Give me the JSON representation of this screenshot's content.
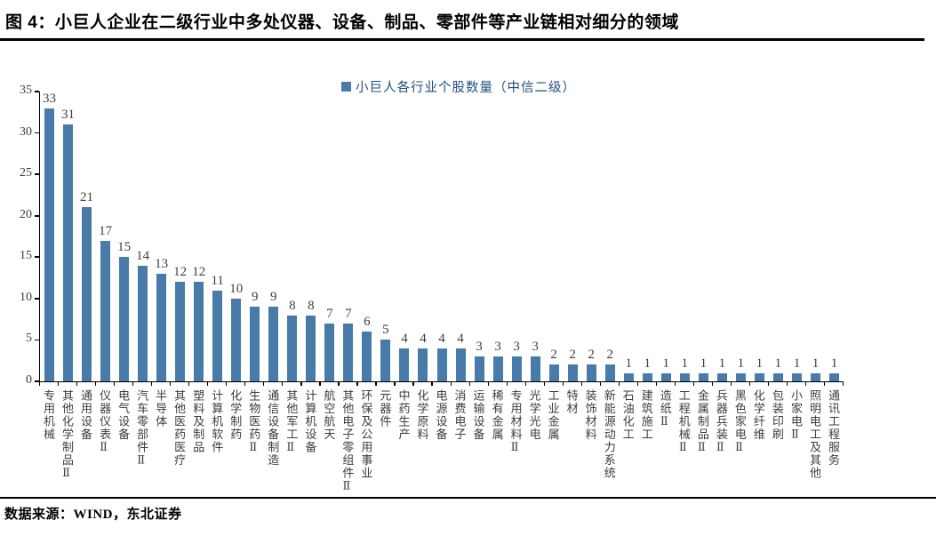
{
  "header": {
    "title": "图 4：小巨人企业在二级行业中多处仪器、设备、制品、零部件等产业链相对细分的领域"
  },
  "footer": {
    "source": "数据来源：WIND，东北证券"
  },
  "colors": {
    "bar": "#487AAA",
    "legend_text": "#1F4E79",
    "axis": "#000000",
    "value_label": "#3d3d3d"
  },
  "chart_data": {
    "type": "bar",
    "legend": "小巨人各行业个股数量（中信二级）",
    "legend_position": "top-center",
    "grid": false,
    "data_labels": true,
    "ylim": [
      0,
      35
    ],
    "y_ticks": [
      0,
      5,
      10,
      15,
      20,
      25,
      30,
      35
    ],
    "xlabel": "",
    "ylabel": "",
    "categories": [
      "专用机械",
      "其他化学制品Ⅱ",
      "通用设备",
      "仪器仪表Ⅱ",
      "电气设备",
      "汽车零部件Ⅱ",
      "半导体",
      "其他医药医疗",
      "塑料及制品",
      "计算机软件",
      "化学制药",
      "生物医药Ⅱ",
      "通信设备制造",
      "其他军工Ⅱ",
      "计算机设备",
      "航空航天",
      "其他电子零组件Ⅱ",
      "环保及公用事业",
      "元器件",
      "中药生产",
      "化学原料",
      "电源设备",
      "消费电子",
      "运输设备",
      "稀有金属",
      "专用材料Ⅱ",
      "光学光电",
      "工业金属",
      "特材",
      "装饰材料",
      "新能源动力系统",
      "石油化工",
      "建筑施工",
      "造纸Ⅱ",
      "工程机械Ⅱ",
      "金属制品Ⅱ",
      "兵器兵装Ⅱ",
      "黑色家电Ⅱ",
      "化学纤维",
      "包装印刷",
      "小家电Ⅱ",
      "照明电工及其他",
      "通讯工程服务"
    ],
    "values": [
      33,
      31,
      21,
      17,
      15,
      14,
      13,
      12,
      12,
      11,
      10,
      9,
      9,
      8,
      8,
      7,
      7,
      6,
      5,
      4,
      4,
      4,
      4,
      3,
      3,
      3,
      3,
      2,
      2,
      2,
      2,
      1,
      1,
      1,
      1,
      1,
      1,
      1,
      1,
      1,
      1,
      1,
      1
    ]
  }
}
